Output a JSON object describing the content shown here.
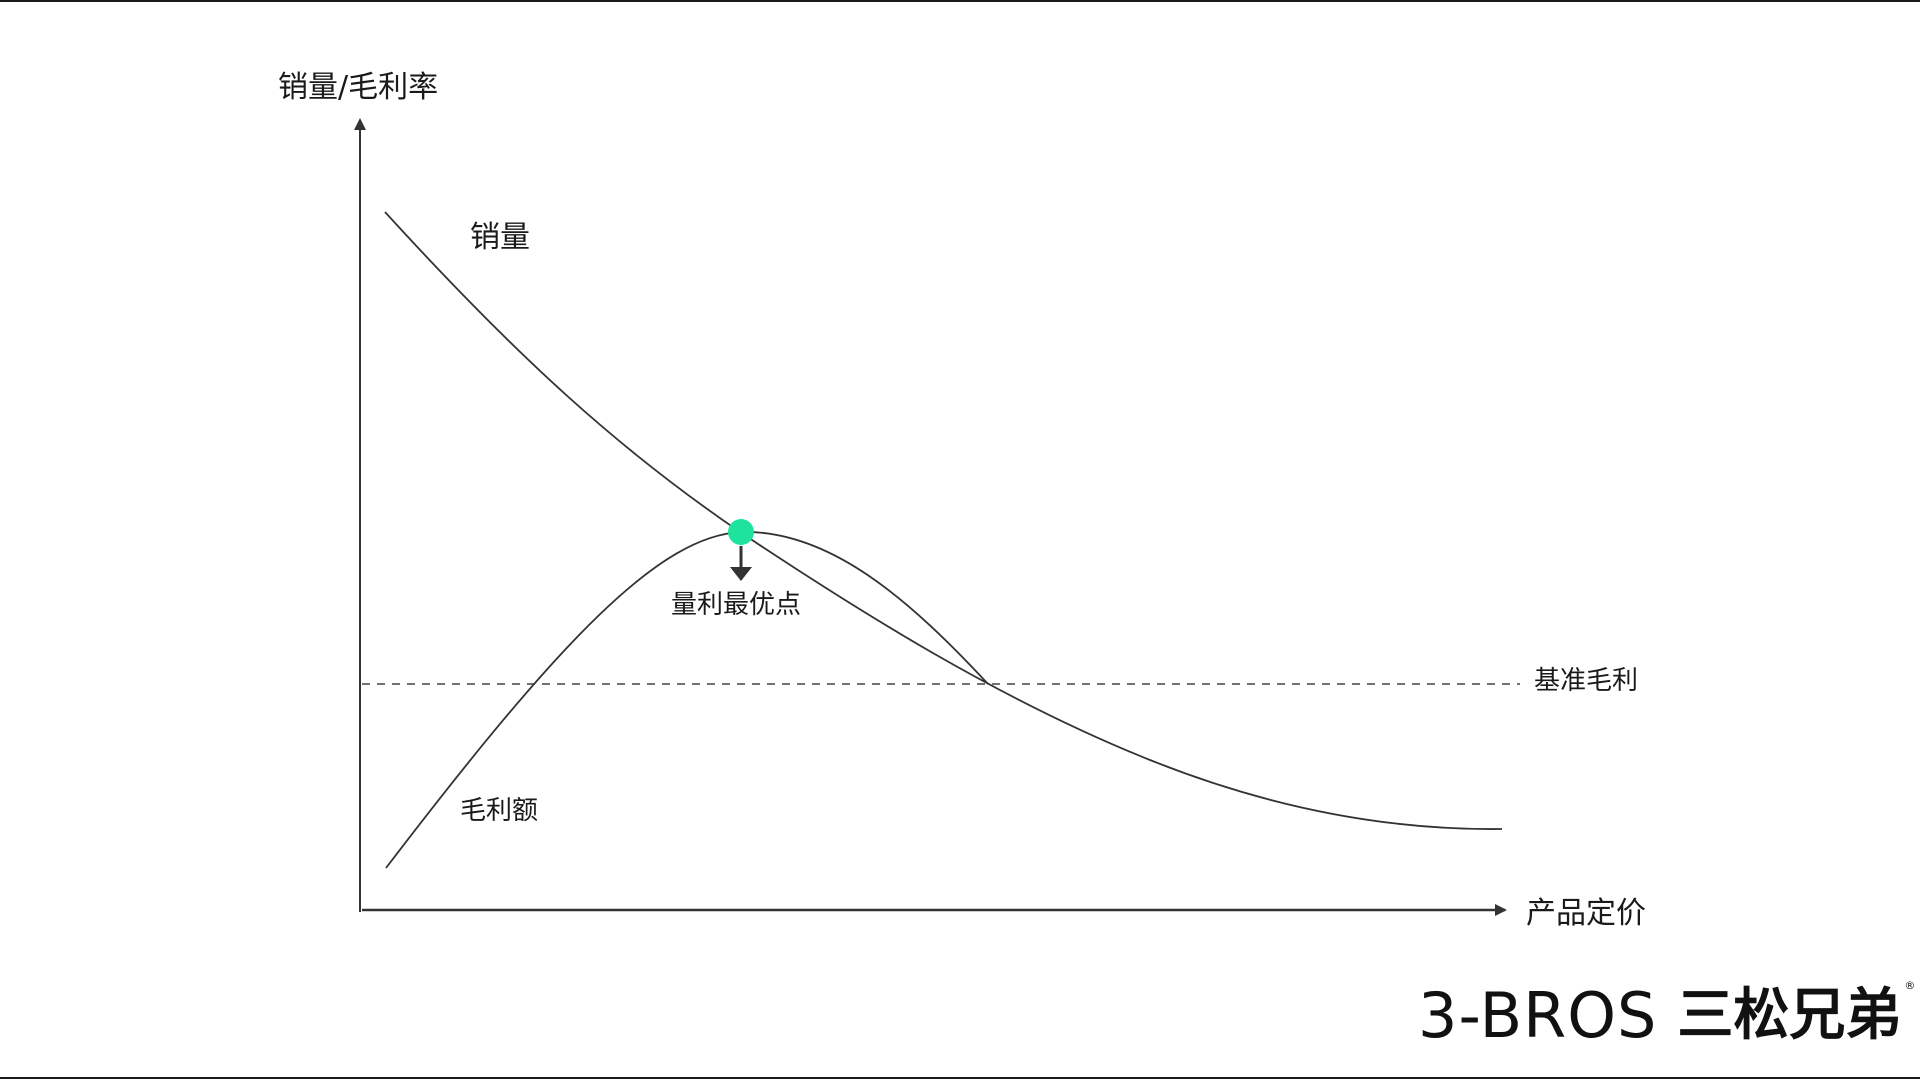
{
  "axes": {
    "y_label": "销量/毛利率",
    "x_label": "产品定价"
  },
  "curves": {
    "sales_label": "销量",
    "margin_label": "毛利额",
    "baseline_label": "基准毛利"
  },
  "optimum": {
    "label": "量利最优点",
    "color": "#1ee39c"
  },
  "brand": {
    "en": "3-BROS",
    "cn": "三松兄弟",
    "reg": "®"
  },
  "colors": {
    "line": "#333333",
    "text": "#1a1a1a"
  }
}
